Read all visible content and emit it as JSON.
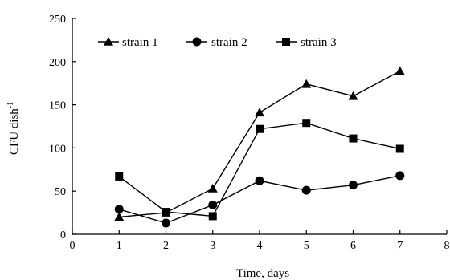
{
  "chart_data": {
    "type": "line",
    "title": "",
    "xlabel": "Time, days",
    "ylabel": "CFU dish",
    "ylabel_superscript": "-1",
    "xlim": [
      0,
      8
    ],
    "ylim": [
      0,
      250
    ],
    "xticks": [
      0,
      1,
      2,
      3,
      4,
      5,
      6,
      7,
      8
    ],
    "yticks": [
      0,
      50,
      100,
      150,
      200,
      250
    ],
    "grid": false,
    "legend_position": "top-left",
    "x": [
      1,
      2,
      3,
      4,
      5,
      6,
      7
    ],
    "series": [
      {
        "name": "strain 1",
        "marker": "triangle",
        "values": [
          20,
          25,
          53,
          141,
          174,
          160,
          189
        ]
      },
      {
        "name": "strain 2",
        "marker": "circle",
        "values": [
          29,
          13,
          34,
          62,
          51,
          57,
          68
        ]
      },
      {
        "name": "strain 3",
        "marker": "square",
        "values": [
          67,
          26,
          21,
          122,
          129,
          111,
          99
        ]
      }
    ]
  }
}
